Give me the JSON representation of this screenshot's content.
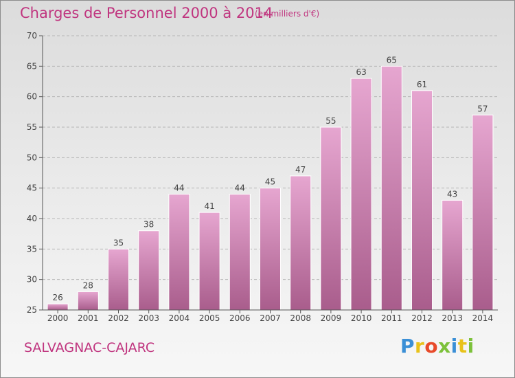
{
  "header": {
    "title": "Charges de Personnel 2000 à 2014",
    "unit": "(en milliers d'€)"
  },
  "footer": {
    "commune": "SALVAGNAC-CAJARC",
    "logo_letters": [
      {
        "char": "P",
        "color": "#3a8fd6"
      },
      {
        "char": "r",
        "color": "#e8c21a"
      },
      {
        "char": "o",
        "color": "#e84a2a"
      },
      {
        "char": "x",
        "color": "#7cc13a"
      },
      {
        "char": "i",
        "color": "#3a8fd6"
      },
      {
        "char": "t",
        "color": "#e8c21a"
      },
      {
        "char": "i",
        "color": "#7cc13a"
      }
    ]
  },
  "colors": {
    "accent": "#c0357f",
    "bar_top": "#e6a6d0",
    "bar_bottom": "#a95d8c",
    "axis": "#555555",
    "grid": "#b5b5b5"
  },
  "chart_data": {
    "type": "bar",
    "title": "Charges de Personnel 2000 à 2014",
    "subtitle": "(en milliers d'€)",
    "categories": [
      "2000",
      "2001",
      "2002",
      "2003",
      "2004",
      "2005",
      "2006",
      "2007",
      "2008",
      "2009",
      "2010",
      "2011",
      "2012",
      "2013",
      "2014"
    ],
    "values": [
      26,
      28,
      35,
      38,
      44,
      41,
      44,
      45,
      47,
      55,
      63,
      65,
      61,
      43,
      57
    ],
    "ylim": [
      25,
      70
    ],
    "yticks": [
      25,
      30,
      35,
      40,
      45,
      50,
      55,
      60,
      65,
      70
    ],
    "grid": true,
    "data_labels": true
  }
}
